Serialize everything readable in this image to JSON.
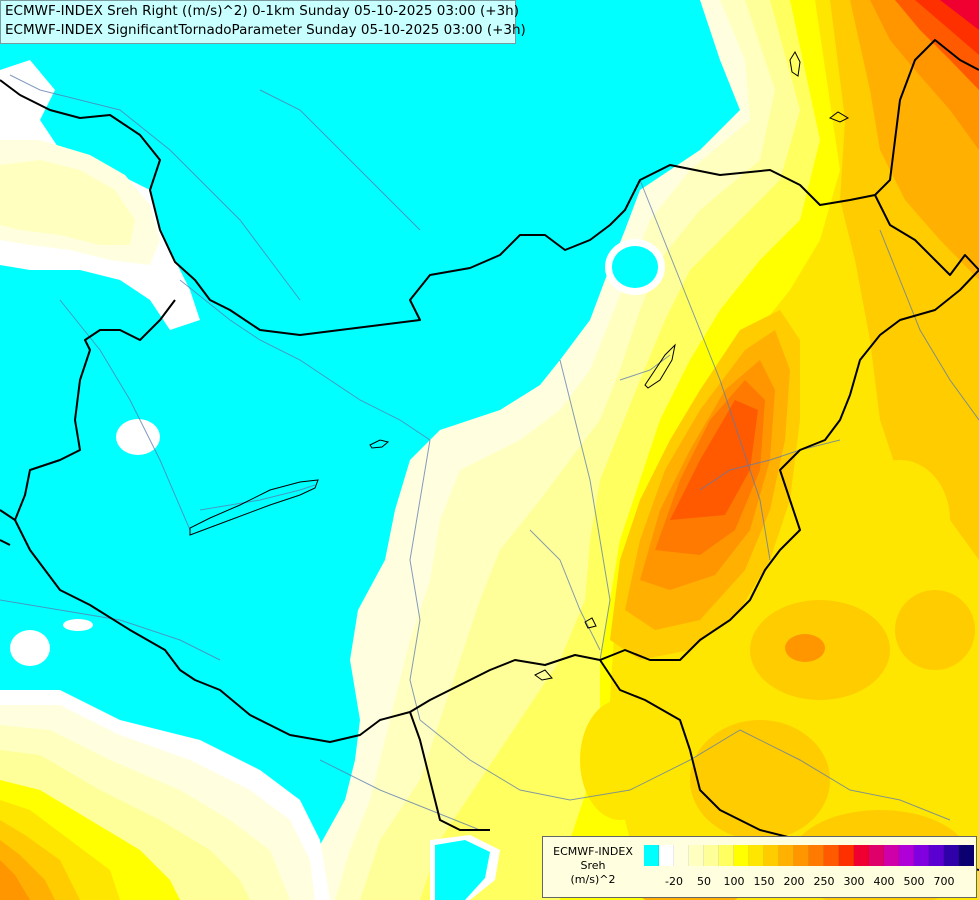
{
  "title_lines": [
    "ECMWF-INDEX Sreh Right ((m/s)^2) 0-1km Sunday 05-10-2025 03:00 (+3h)",
    "ECMWF-INDEX SignificantTornadoParameter Sunday 05-10-2025 03:00 (+3h)"
  ],
  "legend": {
    "title_lines": [
      "ECMWF-INDEX",
      "Sreh",
      "(m/s)^2"
    ],
    "colors": [
      "#00ffff",
      "#ffffff",
      "#ffffe0",
      "#ffffc0",
      "#ffff9a",
      "#ffff60",
      "#ffff00",
      "#ffe600",
      "#ffcc00",
      "#ffb000",
      "#ff9600",
      "#ff7a00",
      "#ff5a00",
      "#ff3000",
      "#f00030",
      "#e0006a",
      "#d000a8",
      "#b000d8",
      "#8000e0",
      "#5a00d0",
      "#3000a8",
      "#0a0070"
    ],
    "ticks": [
      {
        "label": "-20",
        "index": 1
      },
      {
        "label": "50",
        "index": 3
      },
      {
        "label": "100",
        "index": 5
      },
      {
        "label": "150",
        "index": 7
      },
      {
        "label": "200",
        "index": 9
      },
      {
        "label": "250",
        "index": 11
      },
      {
        "label": "300",
        "index": 13
      },
      {
        "label": "400",
        "index": 15
      },
      {
        "label": "500",
        "index": 17
      },
      {
        "label": "700",
        "index": 19
      }
    ]
  }
}
